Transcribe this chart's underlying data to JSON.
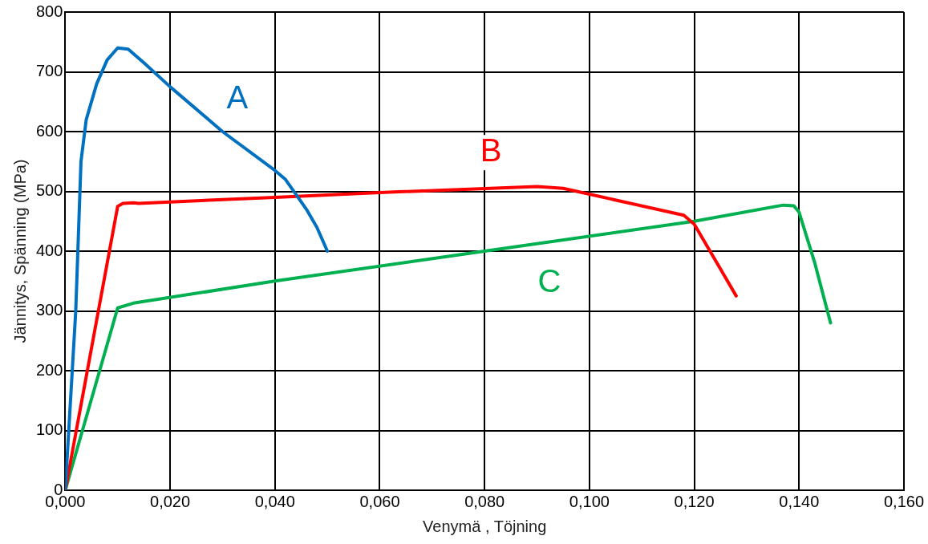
{
  "chart_data": {
    "type": "line",
    "xlabel": "Venymä , Töjning",
    "ylabel": "Jännitys, Spänning (MPa)",
    "xlim": [
      0,
      0.16
    ],
    "ylim": [
      0,
      800
    ],
    "xticks": [
      {
        "value": 0,
        "label": "0,000"
      },
      {
        "value": 0.02,
        "label": "0,020"
      },
      {
        "value": 0.04,
        "label": "0,040"
      },
      {
        "value": 0.06,
        "label": "0,060"
      },
      {
        "value": 0.08,
        "label": "0,080"
      },
      {
        "value": 0.1,
        "label": "0,100"
      },
      {
        "value": 0.12,
        "label": "0,120"
      },
      {
        "value": 0.14,
        "label": "0,140"
      },
      {
        "value": 0.16,
        "label": "0,160"
      }
    ],
    "yticks": [
      0,
      100,
      200,
      300,
      400,
      500,
      600,
      700,
      800
    ],
    "grid": true,
    "legend": false,
    "marker": "none",
    "line_style": "solid",
    "series": [
      {
        "name": "A",
        "color": "#0070c0",
        "x": [
          0,
          0.002,
          0.003,
          0.004,
          0.006,
          0.008,
          0.01,
          0.012,
          0.015,
          0.02,
          0.03,
          0.04,
          0.042,
          0.044,
          0.046,
          0.048,
          0.05
        ],
        "values": [
          0,
          300,
          550,
          620,
          680,
          720,
          740,
          738,
          715,
          675,
          600,
          535,
          520,
          495,
          470,
          440,
          400
        ]
      },
      {
        "name": "B",
        "color": "#ff0000",
        "x": [
          0,
          0.01,
          0.011,
          0.013,
          0.014,
          0.04,
          0.06,
          0.09,
          0.095,
          0.118,
          0.12,
          0.125,
          0.128
        ],
        "values": [
          0,
          475,
          480,
          481,
          480,
          490,
          498,
          508,
          505,
          460,
          445,
          370,
          325
        ]
      },
      {
        "name": "C",
        "color": "#00b050",
        "x": [
          0,
          0.01,
          0.013,
          0.04,
          0.08,
          0.12,
          0.137,
          0.139,
          0.14,
          0.143,
          0.146
        ],
        "values": [
          0,
          305,
          313,
          350,
          400,
          450,
          477,
          476,
          465,
          380,
          280
        ]
      }
    ]
  }
}
